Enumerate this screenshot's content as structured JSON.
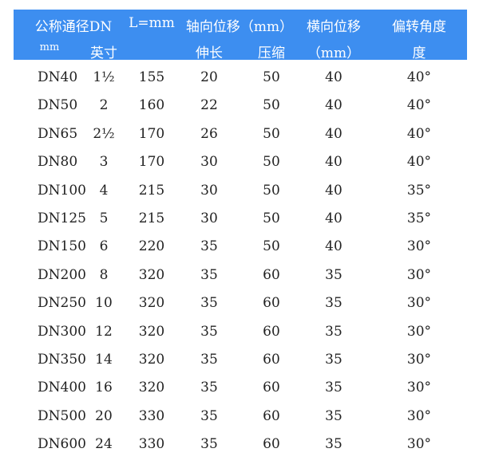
{
  "header": {
    "row1": [
      "公称通径DN",
      "L=mm",
      "轴向位移（mm）",
      "横向位移",
      "偏转角度"
    ],
    "row2": [
      "mm",
      "英寸",
      "伸长",
      "压缩",
      "（mm）",
      "度"
    ]
  },
  "rows": [
    [
      "DN40",
      "1½",
      "155",
      "20",
      "50",
      "40",
      "40°"
    ],
    [
      "DN50",
      "2",
      "160",
      "22",
      "50",
      "40",
      "40°"
    ],
    [
      "DN65",
      "2½",
      "170",
      "26",
      "50",
      "40",
      "40°"
    ],
    [
      "DN80",
      "3",
      "170",
      "30",
      "50",
      "40",
      "40°"
    ],
    [
      "DN100",
      "4",
      "215",
      "30",
      "50",
      "40",
      "35°"
    ],
    [
      "DN125",
      "5",
      "215",
      "30",
      "50",
      "40",
      "35°"
    ],
    [
      "DN150",
      "6",
      "220",
      "35",
      "50",
      "40",
      "30°"
    ],
    [
      "DN200",
      "8",
      "320",
      "35",
      "60",
      "35",
      "30°"
    ],
    [
      "DN250",
      "10",
      "320",
      "35",
      "60",
      "35",
      "30°"
    ],
    [
      "DN300",
      "12",
      "320",
      "35",
      "60",
      "35",
      "30°"
    ],
    [
      "DN350",
      "14",
      "320",
      "35",
      "60",
      "35",
      "30°"
    ],
    [
      "DN400",
      "16",
      "320",
      "35",
      "60",
      "35",
      "30°"
    ],
    [
      "DN500",
      "20",
      "330",
      "35",
      "60",
      "35",
      "30°"
    ],
    [
      "DN600",
      "24",
      "330",
      "35",
      "60",
      "35",
      "30°"
    ]
  ]
}
